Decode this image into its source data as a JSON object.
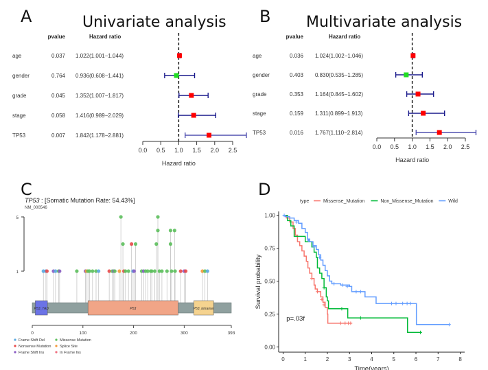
{
  "chart_data": [
    {
      "panel": "A",
      "type": "forest",
      "title": "Univariate analysis",
      "col_headers": {
        "pvalue": "pvalue",
        "hr": "Hazard ratio"
      },
      "rows": [
        {
          "label": "age",
          "pvalue": "0.037",
          "hr_text": "1.022(1.001−1.044)",
          "hr": 1.022,
          "lo": 1.001,
          "hi": 1.044,
          "color": "#ff0000"
        },
        {
          "label": "gender",
          "pvalue": "0.764",
          "hr_text": "0.936(0.608−1.441)",
          "hr": 0.936,
          "lo": 0.608,
          "hi": 1.441,
          "color": "#22dd22"
        },
        {
          "label": "grade",
          "pvalue": "0.045",
          "hr_text": "1.352(1.007−1.817)",
          "hr": 1.352,
          "lo": 1.007,
          "hi": 1.817,
          "color": "#ff0000"
        },
        {
          "label": "stage",
          "pvalue": "0.058",
          "hr_text": "1.416(0.989−2.029)",
          "hr": 1.416,
          "lo": 0.989,
          "hi": 2.029,
          "color": "#ff0000"
        },
        {
          "label": "TP53",
          "pvalue": "0.007",
          "hr_text": "1.842(1.178−2.881)",
          "hr": 1.842,
          "lo": 1.178,
          "hi": 2.881,
          "color": "#ff0000"
        }
      ],
      "xticks": [
        "0.0",
        "0.5",
        "1.0",
        "1.5",
        "2.0",
        "2.5"
      ],
      "xlim": [
        0,
        2.9
      ],
      "xlabel": "Hazard ratio",
      "ref_line": 1.0
    },
    {
      "panel": "B",
      "type": "forest",
      "title": "Multivariate analysis",
      "col_headers": {
        "pvalue": "pvalue",
        "hr": "Hazard ratio"
      },
      "rows": [
        {
          "label": "age",
          "pvalue": "0.036",
          "hr_text": "1.024(1.002−1.046)",
          "hr": 1.024,
          "lo": 1.002,
          "hi": 1.046,
          "color": "#ff0000"
        },
        {
          "label": "gender",
          "pvalue": "0.403",
          "hr_text": "0.830(0.535−1.285)",
          "hr": 0.83,
          "lo": 0.535,
          "hi": 1.285,
          "color": "#22dd22"
        },
        {
          "label": "grade",
          "pvalue": "0.353",
          "hr_text": "1.164(0.845−1.602)",
          "hr": 1.164,
          "lo": 0.845,
          "hi": 1.602,
          "color": "#ff0000"
        },
        {
          "label": "stage",
          "pvalue": "0.159",
          "hr_text": "1.311(0.899−1.913)",
          "hr": 1.311,
          "lo": 0.899,
          "hi": 1.913,
          "color": "#ff0000"
        },
        {
          "label": "TP53",
          "pvalue": "0.016",
          "hr_text": "1.767(1.110−2.814)",
          "hr": 1.767,
          "lo": 1.11,
          "hi": 2.814,
          "color": "#ff0000"
        }
      ],
      "xticks": [
        "0.0",
        "0.5",
        "1.0",
        "1.5",
        "2.0",
        "2.5"
      ],
      "xlim": [
        0,
        2.8
      ],
      "xlabel": "Hazard ratio",
      "ref_line": 1.0
    },
    {
      "panel": "C",
      "type": "scatter",
      "subtype": "lollipop",
      "gene": "TP53",
      "title_suffix": " : [Somatic Mutation Rate: 54.43%]",
      "transcript": "NM_000546",
      "y_ticks": [
        "5",
        "1"
      ],
      "ylim": [
        1,
        5
      ],
      "x_ticks": [
        "0",
        "100",
        "200",
        "300",
        "393"
      ],
      "xlim": [
        0,
        393
      ],
      "protein_length": 393,
      "domains": [
        {
          "name": "P53_TAD",
          "start": 6,
          "end": 30,
          "color": "#6b73e6"
        },
        {
          "name": "P53",
          "start": 110,
          "end": 288,
          "color": "#f1a587"
        },
        {
          "name": "P53_tetramer",
          "start": 319,
          "end": 358,
          "color": "#f5d38f"
        }
      ],
      "mutation_colors": {
        "Frame_Shift_Del": "#5aa9e0",
        "Missense_Mutation": "#5cbf5c",
        "Nonsense_Mutation": "#e84a4a",
        "Splice_Site": "#f39a3a",
        "Frame_Shift_Ins": "#8a5cc4",
        "In_Frame_Ins": "#f07080"
      },
      "legend": [
        {
          "label": "Frame Shift Del",
          "key": "Frame_Shift_Del"
        },
        {
          "label": "Missense Mutation",
          "key": "Missense_Mutation"
        },
        {
          "label": "Nonsense Mutation",
          "key": "Nonsense_Mutation"
        },
        {
          "label": "Splice Site",
          "key": "Splice_Site"
        },
        {
          "label": "Frame Shift Ins",
          "key": "Frame_Shift_Ins"
        },
        {
          "label": "In Frame Ins",
          "key": "In_Frame_Ins"
        }
      ],
      "mutations": [
        {
          "pos": 22,
          "count": 1,
          "type": "Frame_Shift_Del"
        },
        {
          "pos": 27,
          "count": 1,
          "type": "Frame_Shift_Del"
        },
        {
          "pos": 29,
          "count": 1,
          "type": "Nonsense_Mutation"
        },
        {
          "pos": 42,
          "count": 1,
          "type": "Frame_Shift_Ins"
        },
        {
          "pos": 46,
          "count": 1,
          "type": "Frame_Shift_Del"
        },
        {
          "pos": 52,
          "count": 1,
          "type": "Missense_Mutation"
        },
        {
          "pos": 54,
          "count": 1,
          "type": "Frame_Shift_Ins"
        },
        {
          "pos": 88,
          "count": 1,
          "type": "Missense_Mutation"
        },
        {
          "pos": 105,
          "count": 1,
          "type": "Frame_Shift_Ins"
        },
        {
          "pos": 107,
          "count": 1,
          "type": "Splice_Site"
        },
        {
          "pos": 110,
          "count": 1,
          "type": "Missense_Mutation"
        },
        {
          "pos": 113,
          "count": 1,
          "type": "Missense_Mutation"
        },
        {
          "pos": 119,
          "count": 1,
          "type": "Missense_Mutation"
        },
        {
          "pos": 126,
          "count": 1,
          "type": "Missense_Mutation"
        },
        {
          "pos": 131,
          "count": 1,
          "type": "Frame_Shift_Del"
        },
        {
          "pos": 152,
          "count": 1,
          "type": "Nonsense_Mutation"
        },
        {
          "pos": 158,
          "count": 1,
          "type": "Missense_Mutation"
        },
        {
          "pos": 161,
          "count": 1,
          "type": "Frame_Shift_Ins"
        },
        {
          "pos": 163,
          "count": 1,
          "type": "Missense_Mutation"
        },
        {
          "pos": 172,
          "count": 1,
          "type": "Splice_Site"
        },
        {
          "pos": 175,
          "count": 5,
          "type": "Missense_Mutation"
        },
        {
          "pos": 179,
          "count": 3,
          "type": "Missense_Mutation"
        },
        {
          "pos": 181,
          "count": 1,
          "type": "Nonsense_Mutation"
        },
        {
          "pos": 184,
          "count": 1,
          "type": "Missense_Mutation"
        },
        {
          "pos": 190,
          "count": 1,
          "type": "Missense_Mutation"
        },
        {
          "pos": 196,
          "count": 3,
          "type": "Nonsense_Mutation"
        },
        {
          "pos": 199,
          "count": 1,
          "type": "Frame_Shift_Del"
        },
        {
          "pos": 201,
          "count": 1,
          "type": "Frame_Shift_Ins"
        },
        {
          "pos": 204,
          "count": 3,
          "type": "Missense_Mutation"
        },
        {
          "pos": 216,
          "count": 1,
          "type": "Missense_Mutation"
        },
        {
          "pos": 220,
          "count": 1,
          "type": "Frame_Shift_Ins"
        },
        {
          "pos": 224,
          "count": 1,
          "type": "Missense_Mutation"
        },
        {
          "pos": 228,
          "count": 1,
          "type": "Missense_Mutation"
        },
        {
          "pos": 234,
          "count": 1,
          "type": "Missense_Mutation"
        },
        {
          "pos": 236,
          "count": 1,
          "type": "Missense_Mutation"
        },
        {
          "pos": 242,
          "count": 1,
          "type": "Missense_Mutation"
        },
        {
          "pos": 245,
          "count": 3,
          "type": "Missense_Mutation"
        },
        {
          "pos": 248,
          "count": 5,
          "type": "Missense_Mutation"
        },
        {
          "pos": 248,
          "count": 4,
          "type": "Missense_Mutation"
        },
        {
          "pos": 251,
          "count": 1,
          "type": "Missense_Mutation"
        },
        {
          "pos": 256,
          "count": 1,
          "type": "Missense_Mutation"
        },
        {
          "pos": 266,
          "count": 1,
          "type": "Missense_Mutation"
        },
        {
          "pos": 273,
          "count": 4,
          "type": "Missense_Mutation"
        },
        {
          "pos": 273,
          "count": 3,
          "type": "Missense_Mutation"
        },
        {
          "pos": 275,
          "count": 1,
          "type": "Missense_Mutation"
        },
        {
          "pos": 281,
          "count": 4,
          "type": "Missense_Mutation"
        },
        {
          "pos": 282,
          "count": 1,
          "type": "Missense_Mutation"
        },
        {
          "pos": 293,
          "count": 1,
          "type": "Nonsense_Mutation"
        },
        {
          "pos": 300,
          "count": 1,
          "type": "Frame_Shift_Ins"
        },
        {
          "pos": 303,
          "count": 1,
          "type": "Nonsense_Mutation"
        },
        {
          "pos": 336,
          "count": 1,
          "type": "Splice_Site"
        },
        {
          "pos": 341,
          "count": 1,
          "type": "Missense_Mutation"
        },
        {
          "pos": 346,
          "count": 1,
          "type": "Frame_Shift_Del"
        }
      ]
    },
    {
      "panel": "D",
      "type": "line",
      "subtype": "kaplan-meier",
      "legend_title": "type",
      "xlabel": "Time(years)",
      "ylabel": "Survival probability",
      "xlim": [
        -0.2,
        8.2
      ],
      "ylim": [
        0,
        1.03
      ],
      "xticks": [
        0,
        1,
        2,
        3,
        4,
        5,
        6,
        7,
        8
      ],
      "yticks": [
        "0.00",
        "0.25",
        "0.50",
        "0.75",
        "1.00"
      ],
      "annotation": "p=.03f",
      "series": [
        {
          "name": "Missense_Mutation",
          "color": "#f8766d",
          "steps": [
            [
              0,
              1.0
            ],
            [
              0.15,
              0.98
            ],
            [
              0.3,
              0.95
            ],
            [
              0.45,
              0.9
            ],
            [
              0.55,
              0.85
            ],
            [
              0.65,
              0.8
            ],
            [
              0.75,
              0.77
            ],
            [
              0.85,
              0.73
            ],
            [
              0.95,
              0.69
            ],
            [
              1.05,
              0.65
            ],
            [
              1.12,
              0.6
            ],
            [
              1.2,
              0.56
            ],
            [
              1.3,
              0.52
            ],
            [
              1.4,
              0.47
            ],
            [
              1.45,
              0.44
            ],
            [
              1.55,
              0.42
            ],
            [
              1.7,
              0.38
            ],
            [
              1.8,
              0.34
            ],
            [
              1.9,
              0.3
            ],
            [
              2.0,
              0.25
            ],
            [
              2.02,
              0.18
            ],
            [
              3.1,
              0.18
            ]
          ],
          "censors": [
            [
              1.3,
              0.52
            ],
            [
              1.55,
              0.42
            ],
            [
              1.75,
              0.36
            ],
            [
              1.85,
              0.32
            ],
            [
              2.6,
              0.18
            ],
            [
              2.8,
              0.18
            ],
            [
              2.95,
              0.18
            ],
            [
              3.05,
              0.18
            ]
          ]
        },
        {
          "name": "Non_Missense_Mutation",
          "color": "#00ba38",
          "steps": [
            [
              0,
              1.0
            ],
            [
              0.2,
              0.96
            ],
            [
              0.35,
              0.92
            ],
            [
              0.5,
              0.84
            ],
            [
              0.9,
              0.84
            ],
            [
              1.0,
              0.8
            ],
            [
              1.3,
              0.76
            ],
            [
              1.4,
              0.72
            ],
            [
              1.5,
              0.68
            ],
            [
              1.55,
              0.6
            ],
            [
              1.65,
              0.56
            ],
            [
              1.75,
              0.52
            ],
            [
              1.85,
              0.45
            ],
            [
              1.95,
              0.38
            ],
            [
              2.0,
              0.35
            ],
            [
              2.05,
              0.29
            ],
            [
              2.9,
              0.29
            ],
            [
              2.92,
              0.22
            ],
            [
              5.6,
              0.22
            ],
            [
              5.62,
              0.11
            ],
            [
              6.25,
              0.11
            ]
          ],
          "censors": [
            [
              1.85,
              0.45
            ],
            [
              2.65,
              0.29
            ],
            [
              3.5,
              0.22
            ],
            [
              6.2,
              0.11
            ]
          ]
        },
        {
          "name": "Wild",
          "color": "#619cff",
          "steps": [
            [
              0,
              1.0
            ],
            [
              0.1,
              0.99
            ],
            [
              0.3,
              0.98
            ],
            [
              0.5,
              0.96
            ],
            [
              0.7,
              0.94
            ],
            [
              0.85,
              0.9
            ],
            [
              1.0,
              0.87
            ],
            [
              1.1,
              0.82
            ],
            [
              1.2,
              0.8
            ],
            [
              1.35,
              0.77
            ],
            [
              1.5,
              0.74
            ],
            [
              1.6,
              0.7
            ],
            [
              1.7,
              0.66
            ],
            [
              1.8,
              0.62
            ],
            [
              1.9,
              0.58
            ],
            [
              2.0,
              0.54
            ],
            [
              2.1,
              0.5
            ],
            [
              2.2,
              0.48
            ],
            [
              2.5,
              0.48
            ],
            [
              2.6,
              0.47
            ],
            [
              3.0,
              0.46
            ],
            [
              3.1,
              0.42
            ],
            [
              3.6,
              0.42
            ],
            [
              3.7,
              0.38
            ],
            [
              4.1,
              0.38
            ],
            [
              4.2,
              0.33
            ],
            [
              6.0,
              0.33
            ],
            [
              6.02,
              0.17
            ],
            [
              7.5,
              0.17
            ]
          ],
          "censors": [
            [
              0.05,
              1.0
            ],
            [
              0.6,
              0.95
            ],
            [
              1.15,
              0.81
            ],
            [
              1.4,
              0.76
            ],
            [
              1.65,
              0.68
            ],
            [
              2.3,
              0.48
            ],
            [
              2.7,
              0.47
            ],
            [
              2.9,
              0.46
            ],
            [
              3.3,
              0.42
            ],
            [
              3.5,
              0.42
            ],
            [
              4.9,
              0.33
            ],
            [
              5.1,
              0.33
            ],
            [
              5.4,
              0.33
            ],
            [
              5.6,
              0.33
            ],
            [
              5.75,
              0.33
            ],
            [
              7.5,
              0.17
            ]
          ]
        }
      ]
    }
  ],
  "panels": {
    "A": {
      "letter": "A"
    },
    "B": {
      "letter": "B"
    },
    "C": {
      "letter": "C"
    },
    "D": {
      "letter": "D"
    }
  }
}
